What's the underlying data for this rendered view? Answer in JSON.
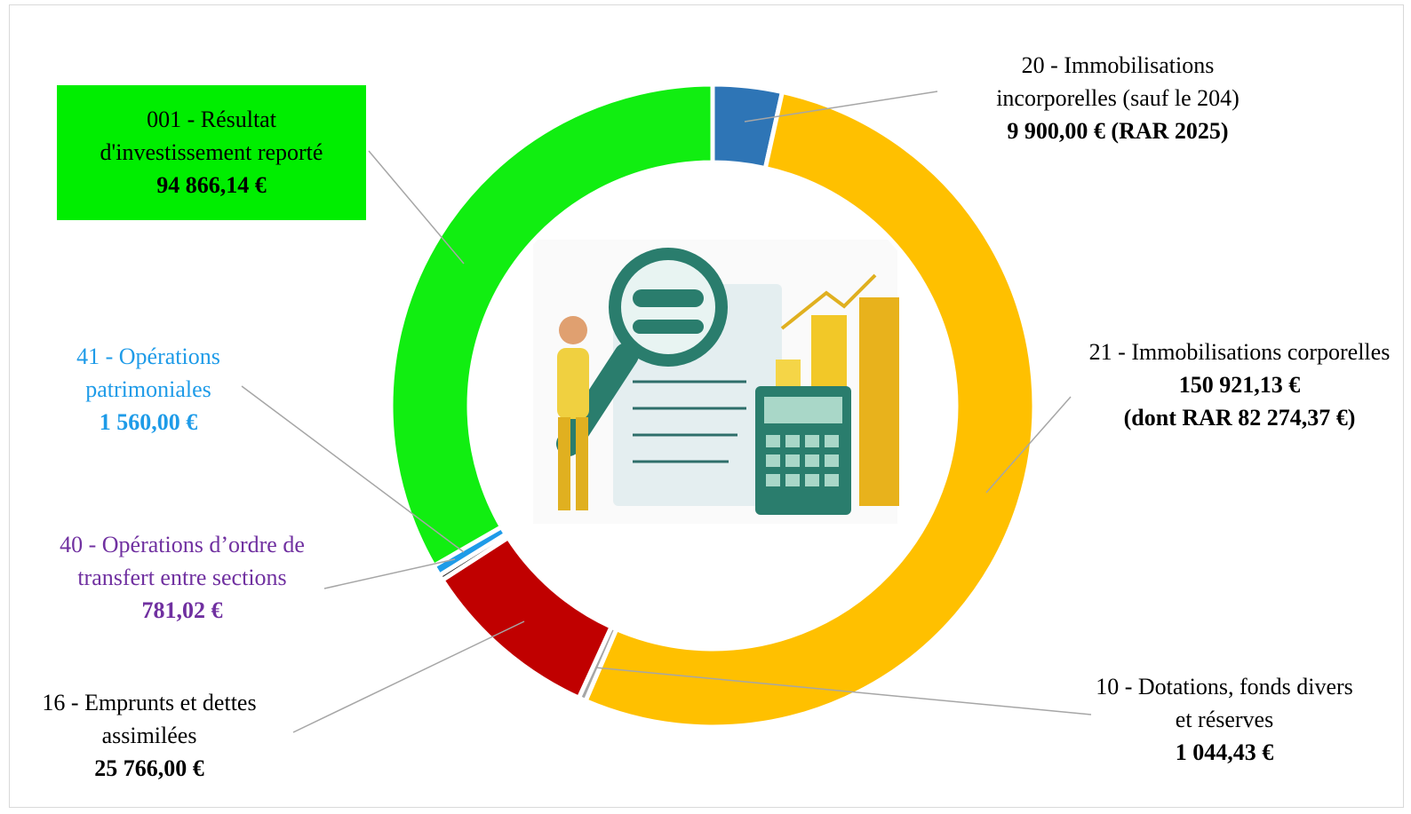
{
  "chart_data": {
    "type": "donut",
    "categories": [
      "20 - Immobilisations incorporelles (sauf le 204)",
      "21 - Immobilisations corporelles",
      "10 - Dotations, fonds divers et réserves",
      "16 - Emprunts et dettes assimilées",
      "40 - Opérations d’ordre de transfert entre sections",
      "41 - Opérations patrimoniales",
      "001 - Résultat d'investissement reporté"
    ],
    "values": [
      9900,
      150921.13,
      1044.43,
      25766,
      781.02,
      1560,
      94866.14
    ],
    "value_labels": [
      "9 900,00 €",
      "150 921,13 €",
      "1 044,43 €",
      "25 766,00 €",
      "781,02 €",
      "1 560,00 €",
      "94 866,14 €"
    ],
    "colors": [
      "#2e75b6",
      "#ffc000",
      "#a6a6a6",
      "#c00000",
      "#262626",
      "#1e9be8",
      "#11ee11"
    ],
    "annotations": [
      "(RAR 2025)",
      "(dont RAR 82 274,37 €)"
    ]
  }
}
